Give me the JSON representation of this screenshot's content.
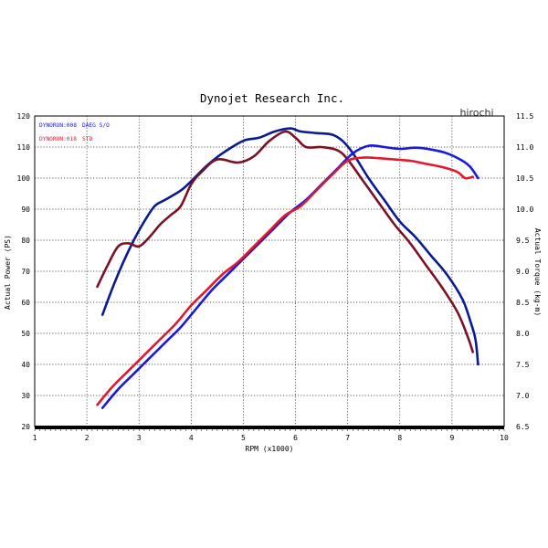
{
  "watermark": "hirochi",
  "chart_data": {
    "type": "line",
    "title": "Dynojet  Research  Inc.",
    "xlabel": "RPM (x1000)",
    "ylabel_left": "Actual Power (PS)",
    "ylabel_right": "Actual Torque (kg-m)",
    "xlim": [
      1,
      10
    ],
    "ylim_left": [
      20,
      120
    ],
    "ylim_right": [
      6.5,
      11.5
    ],
    "x_ticks": [
      "1",
      "2",
      "3",
      "4",
      "5",
      "6",
      "7",
      "8",
      "9",
      "10"
    ],
    "y_ticks_left": [
      "20",
      "30",
      "40",
      "50",
      "60",
      "70",
      "80",
      "90",
      "100",
      "110",
      "120"
    ],
    "y_ticks_right": [
      "6.5",
      "7.0",
      "7.5",
      "8.0",
      "8.5",
      "9.0",
      "9.5",
      "10.0",
      "10.5",
      "11.0",
      "11.5"
    ],
    "grid": true,
    "legend_position": "top-left",
    "legend": [
      {
        "run": "DYNORUN:008",
        "label": "DAEG S/O",
        "color": "#1a1adc"
      },
      {
        "run": "DYNORUN:018",
        "label": "STD",
        "color": "#e01a2a"
      }
    ],
    "series": [
      {
        "name": "DAEG S/O",
        "quantity": "power",
        "axis": "left",
        "color": "#0a1a90",
        "x": [
          2.3,
          2.5,
          2.7,
          2.9,
          3.1,
          3.3,
          3.5,
          3.8,
          4.0,
          4.3,
          4.6,
          5.0,
          5.3,
          5.6,
          5.9,
          6.1,
          6.4,
          6.7,
          6.9,
          7.1,
          7.4,
          7.7,
          8.0,
          8.3,
          8.6,
          8.9,
          9.2,
          9.35,
          9.45,
          9.5
        ],
        "values": [
          56,
          65,
          73,
          80,
          86,
          91,
          93,
          96,
          99,
          104,
          108,
          112,
          113,
          115,
          116,
          115,
          114.5,
          114,
          112,
          108,
          100,
          93,
          86,
          81,
          75,
          69,
          61,
          54,
          48,
          40
        ]
      },
      {
        "name": "STD",
        "quantity": "power",
        "axis": "left",
        "color": "#7a1226",
        "x": [
          2.2,
          2.4,
          2.6,
          2.8,
          3.0,
          3.2,
          3.4,
          3.6,
          3.8,
          4.0,
          4.2,
          4.5,
          4.9,
          5.2,
          5.5,
          5.8,
          6.0,
          6.2,
          6.5,
          6.8,
          7.0,
          7.3,
          7.6,
          7.9,
          8.2,
          8.5,
          8.8,
          9.1,
          9.3,
          9.4
        ],
        "values": [
          65,
          72,
          78,
          79,
          78,
          81,
          85,
          88,
          91,
          98,
          102,
          106,
          105,
          107,
          112,
          115,
          113,
          110,
          110,
          109,
          106,
          99,
          92,
          85,
          79,
          72,
          65,
          57,
          49,
          44
        ]
      },
      {
        "name": "DAEG S/O",
        "quantity": "torque",
        "axis": "right",
        "color": "#1a1adc",
        "x": [
          2.3,
          2.6,
          2.9,
          3.2,
          3.5,
          3.8,
          4.1,
          4.4,
          4.7,
          5.0,
          5.3,
          5.6,
          5.9,
          6.2,
          6.5,
          6.8,
          7.1,
          7.4,
          7.7,
          8.0,
          8.3,
          8.6,
          8.9,
          9.2,
          9.35,
          9.5
        ],
        "values": [
          6.8,
          7.1,
          7.35,
          7.6,
          7.85,
          8.1,
          8.4,
          8.7,
          8.95,
          9.2,
          9.45,
          9.7,
          9.95,
          10.15,
          10.4,
          10.65,
          10.9,
          11.02,
          11.0,
          10.97,
          10.99,
          10.96,
          10.9,
          10.78,
          10.68,
          10.5
        ]
      },
      {
        "name": "STD",
        "quantity": "torque",
        "axis": "right",
        "color": "#e01a2a",
        "x": [
          2.2,
          2.5,
          2.8,
          3.1,
          3.4,
          3.7,
          4.0,
          4.3,
          4.6,
          4.9,
          5.2,
          5.5,
          5.8,
          6.1,
          6.4,
          6.7,
          7.0,
          7.3,
          7.6,
          7.9,
          8.2,
          8.5,
          8.8,
          9.1,
          9.25,
          9.4
        ],
        "values": [
          6.85,
          7.15,
          7.4,
          7.65,
          7.9,
          8.15,
          8.45,
          8.7,
          8.95,
          9.15,
          9.4,
          9.65,
          9.9,
          10.05,
          10.3,
          10.55,
          10.78,
          10.83,
          10.82,
          10.8,
          10.78,
          10.73,
          10.68,
          10.6,
          10.5,
          10.52
        ]
      }
    ]
  }
}
